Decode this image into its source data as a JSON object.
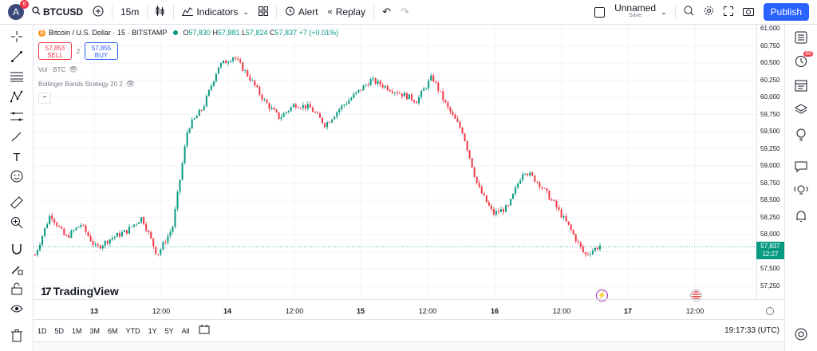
{
  "topbar": {
    "avatar_letter": "A",
    "avatar_badge": "6",
    "symbol": "BTCUSD",
    "interval": "15m",
    "indicators": "Indicators",
    "alert": "Alert",
    "replay": "Replay",
    "layout_name": "Unnamed",
    "layout_status": "Save",
    "publish": "Publish"
  },
  "legend": {
    "title": "Bitcoin / U.S. Dollar · 15 · BITSTAMP",
    "ohlc": {
      "O": "57,830",
      "H": "57,881",
      "L": "57,824",
      "C": "57,837",
      "change": "+7 (+0.01%)"
    },
    "sell_price": "57,853",
    "sell_label": "SELL",
    "spread": "2",
    "buy_price": "57,855",
    "buy_label": "BUY",
    "indicator1": "Vol · BTC",
    "indicator2": "Bollinger Bands Strategy 20 2"
  },
  "price_axis": {
    "ticks": [
      "61,000",
      "60,750",
      "60,500",
      "60,250",
      "60,000",
      "59,750",
      "59,500",
      "59,250",
      "59,000",
      "58,750",
      "58,500",
      "58,250",
      "58,000",
      "57,750",
      "57,500",
      "57,250"
    ],
    "current_price": "57,837",
    "countdown": "12:27"
  },
  "time_axis": {
    "ticks": [
      "13",
      "12:00",
      "14",
      "12:00",
      "15",
      "12:00",
      "16",
      "12:00",
      "17",
      "12:00"
    ]
  },
  "range_bar": {
    "ranges": [
      "1D",
      "5D",
      "1M",
      "3M",
      "6M",
      "YTD",
      "1Y",
      "5Y",
      "All"
    ],
    "clock": "19:17:33 (UTC)"
  },
  "branding": {
    "logo_text": "TradingView"
  },
  "right_toolbar": {
    "notification_badge": "88"
  },
  "colors": {
    "up": "#089981",
    "down": "#f23645",
    "accent": "#2962ff"
  },
  "chart_data": {
    "type": "candlestick",
    "symbol": "BTCUSD",
    "ylim": [
      57150,
      61050
    ],
    "x": [
      "13",
      "12:00",
      "14",
      "12:00",
      "15",
      "12:00",
      "16",
      "12:00",
      "17"
    ],
    "approx_close_path": [
      57700,
      58300,
      57950,
      58150,
      57800,
      57950,
      58050,
      58250,
      57700,
      58100,
      59550,
      59850,
      60450,
      60600,
      60300,
      59950,
      59700,
      59900,
      59850,
      59600,
      59850,
      60050,
      60250,
      60150,
      60050,
      59950,
      60300,
      59850,
      59500,
      58700,
      58300,
      58400,
      58950,
      58750,
      58450,
      58100,
      57700,
      57837
    ]
  }
}
